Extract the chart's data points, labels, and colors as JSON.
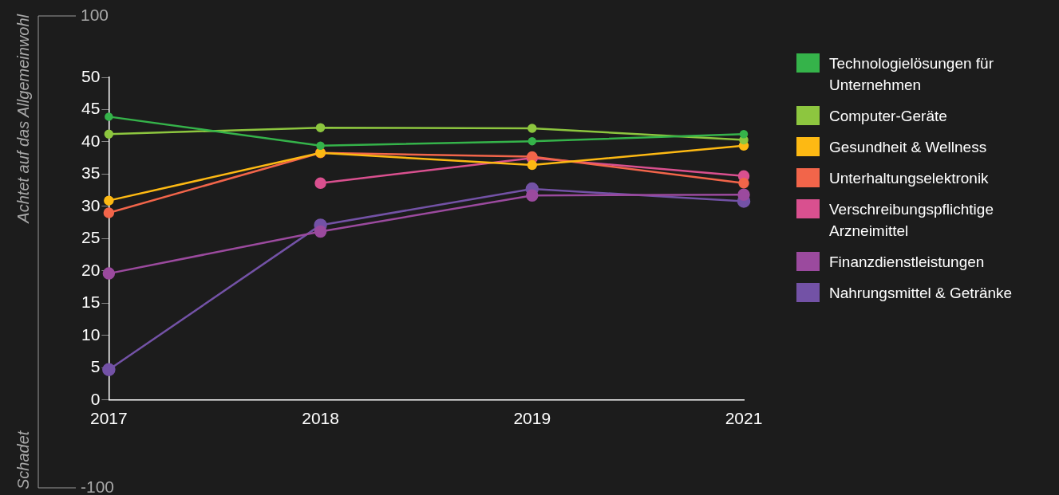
{
  "chart_data": {
    "type": "line",
    "categories": [
      "2017",
      "2018",
      "2019",
      "2021"
    ],
    "ylim": [
      0,
      50
    ],
    "yticks": [
      0,
      5,
      10,
      15,
      20,
      25,
      30,
      35,
      40,
      45,
      50
    ],
    "y2lim": [
      -100,
      100
    ],
    "y2ticks": [
      -100,
      100
    ],
    "annotations": [
      "Achtet auf das Allgemeinwohl",
      "Schadet"
    ],
    "marker": "circle",
    "line_style": "solid",
    "legend": "right",
    "series": [
      {
        "name": "Technologielösungen für Unternehmen",
        "color": "#35b34a",
        "values": [
          43.9,
          39.4,
          40.1,
          41.2
        ]
      },
      {
        "name": "Computer-Geräte",
        "color": "#8dc63f",
        "values": [
          41.2,
          42.2,
          42.1,
          40.3
        ]
      },
      {
        "name": "Gesundheit & Wellness",
        "color": "#fdb913",
        "values": [
          30.9,
          38.3,
          36.4,
          39.4
        ]
      },
      {
        "name": "Unterhaltungselektronik",
        "color": "#f2654a",
        "values": [
          29.0,
          38.3,
          37.7,
          33.6
        ]
      },
      {
        "name": "Verschreibungspflichtige Arzneimittel",
        "color": "#d9508f",
        "values": [
          null,
          33.6,
          37.5,
          34.7
        ]
      },
      {
        "name": "Finanzdienstleistungen",
        "color": "#9b4a9e",
        "values": [
          19.6,
          26.1,
          31.7,
          31.8
        ]
      },
      {
        "name": "Nahrungsmittel & Getränke",
        "color": "#7352a6",
        "values": [
          4.7,
          27.1,
          32.7,
          30.8
        ]
      }
    ]
  }
}
